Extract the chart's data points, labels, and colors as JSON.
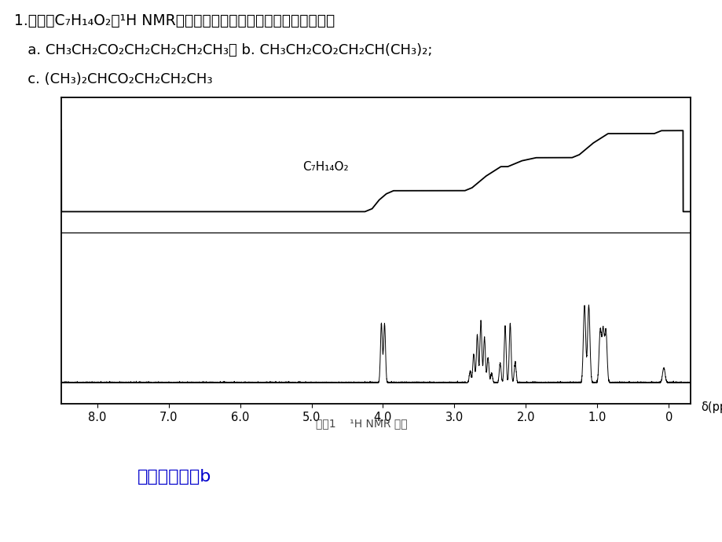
{
  "background_color": "#ffffff",
  "title_line1": "1.化合物C₇H₁₄O₂的¹H NMR谱图如下，它是下列结构式中的那一种？",
  "title_line2": "   a. CH₃CH₂CO₂CH₂CH₂CH₂CH₃； b. CH₃CH₂CO₂CH₂CH(CH₃)₂;",
  "title_line3": "   c. (CH₃)₂CHCO₂CH₂CH₂CH₃",
  "formula_label": "C₇H₁₄O₂",
  "caption": "习题1    ¹H NMR 谱图",
  "answer": "解：化合物为b",
  "answer_color": "#0000cc",
  "xlabel": "δ(ppm)"
}
